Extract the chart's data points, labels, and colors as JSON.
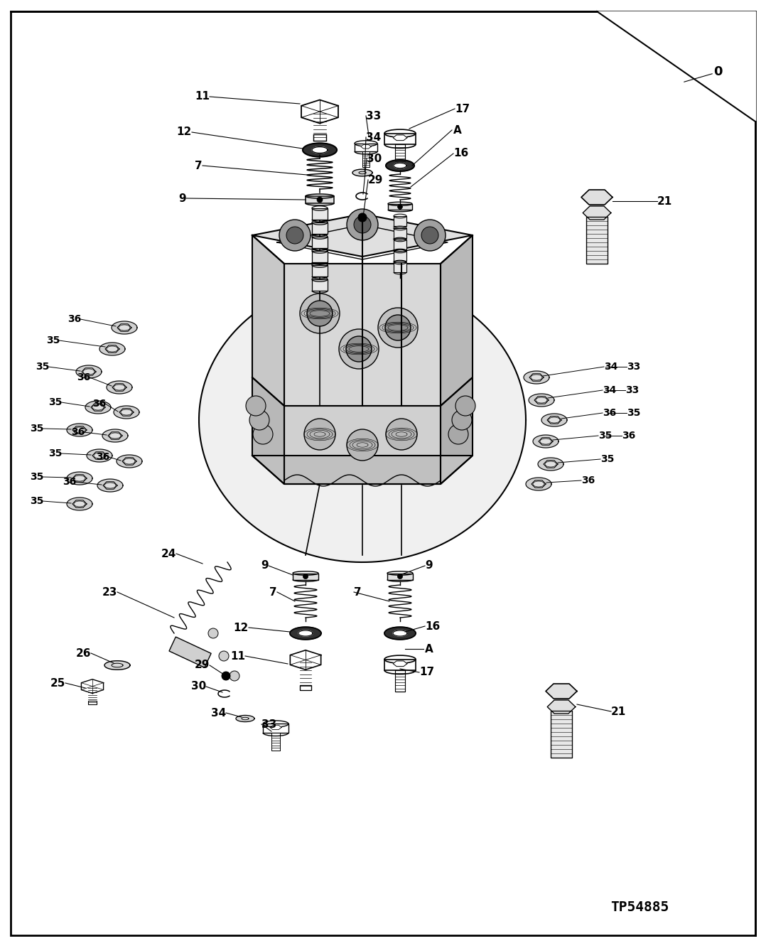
{
  "bg": "#ffffff",
  "fg": "#000000",
  "watermark": "TP54885",
  "corner_label": "0",
  "figsize": [
    10.78,
    13.31
  ],
  "dpi": 100
}
